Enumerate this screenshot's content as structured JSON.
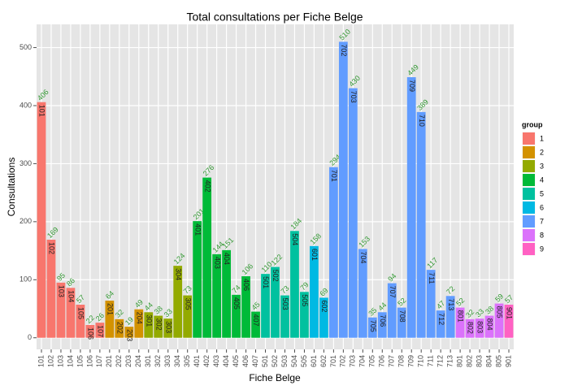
{
  "chart_data": {
    "type": "bar",
    "title": "Total consultations per Fiche Belge",
    "x_label": "Fiche Belge",
    "y_label": "Consultations",
    "categories": [
      "101",
      "102",
      "103",
      "104",
      "105",
      "106",
      "107",
      "201",
      "202",
      "203",
      "204",
      "301",
      "302",
      "303",
      "304",
      "305",
      "401",
      "402",
      "403",
      "404",
      "405",
      "406",
      "407",
      "501",
      "502",
      "503",
      "504",
      "505",
      "601",
      "602",
      "701",
      "702",
      "703",
      "704",
      "705",
      "706",
      "707",
      "708",
      "709",
      "710",
      "711",
      "712",
      "713",
      "801",
      "802",
      "803",
      "804",
      "805",
      "901"
    ],
    "values": [
      406,
      169,
      95,
      86,
      57,
      22,
      26,
      64,
      32,
      19,
      49,
      44,
      38,
      33,
      124,
      73,
      201,
      276,
      144,
      151,
      74,
      106,
      45,
      110,
      122,
      73,
      184,
      79,
      158,
      69,
      294,
      510,
      430,
      153,
      35,
      44,
      94,
      52,
      449,
      389,
      117,
      47,
      72,
      52,
      32,
      33,
      38,
      59,
      57
    ],
    "groups": [
      "1",
      "1",
      "1",
      "1",
      "1",
      "1",
      "1",
      "2",
      "2",
      "2",
      "2",
      "3",
      "3",
      "3",
      "3",
      "3",
      "4",
      "4",
      "4",
      "4",
      "4",
      "4",
      "4",
      "5",
      "5",
      "5",
      "5",
      "5",
      "6",
      "6",
      "7",
      "7",
      "7",
      "7",
      "7",
      "7",
      "7",
      "7",
      "7",
      "7",
      "7",
      "7",
      "7",
      "8",
      "8",
      "8",
      "8",
      "8",
      "9"
    ],
    "legend_title": "group",
    "legend": [
      {
        "name": "1",
        "color": "#F8766D"
      },
      {
        "name": "2",
        "color": "#D39200"
      },
      {
        "name": "3",
        "color": "#93AA00"
      },
      {
        "name": "4",
        "color": "#00BA38"
      },
      {
        "name": "5",
        "color": "#00C19F"
      },
      {
        "name": "6",
        "color": "#00B9E3"
      },
      {
        "name": "7",
        "color": "#619CFF"
      },
      {
        "name": "8",
        "color": "#DB72FB"
      },
      {
        "name": "9",
        "color": "#FF61C3"
      }
    ],
    "value_label_color": "#339933",
    "ylim": [
      -20,
      540
    ],
    "yticks": [
      0,
      100,
      200,
      300,
      400,
      500
    ],
    "grid": true
  }
}
